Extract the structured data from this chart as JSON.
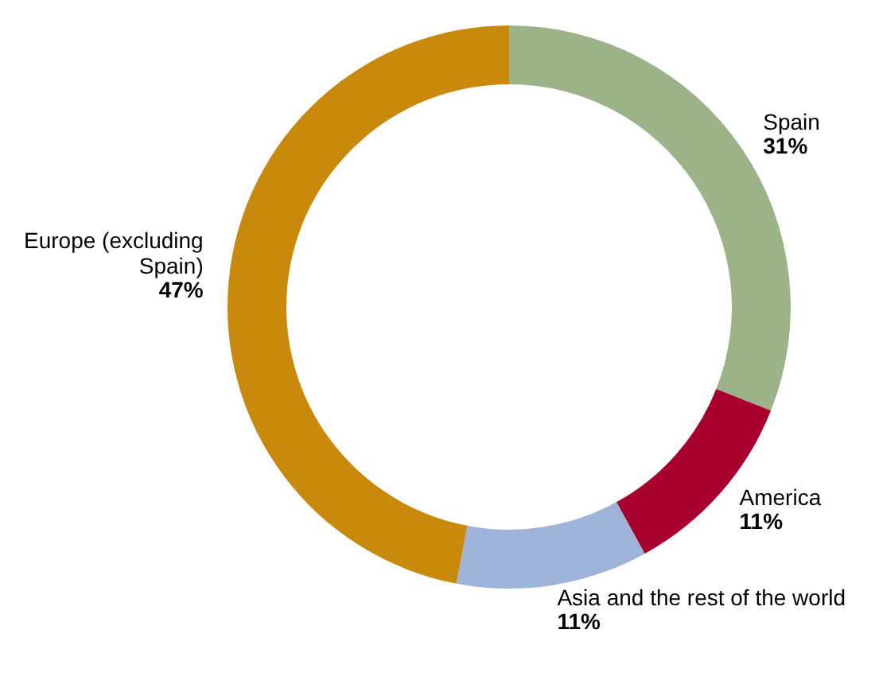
{
  "chart_data": {
    "type": "donut",
    "categories": [
      "Spain",
      "America",
      "Asia and the rest of the world",
      "Europe (excluding Spain)"
    ],
    "values": [
      31,
      11,
      11,
      47
    ],
    "colors": [
      "#9cb38a",
      "#a8002e",
      "#9fb3d9",
      "#c8890d"
    ],
    "value_labels": [
      "31%",
      "11%",
      "11%",
      "47%"
    ]
  }
}
